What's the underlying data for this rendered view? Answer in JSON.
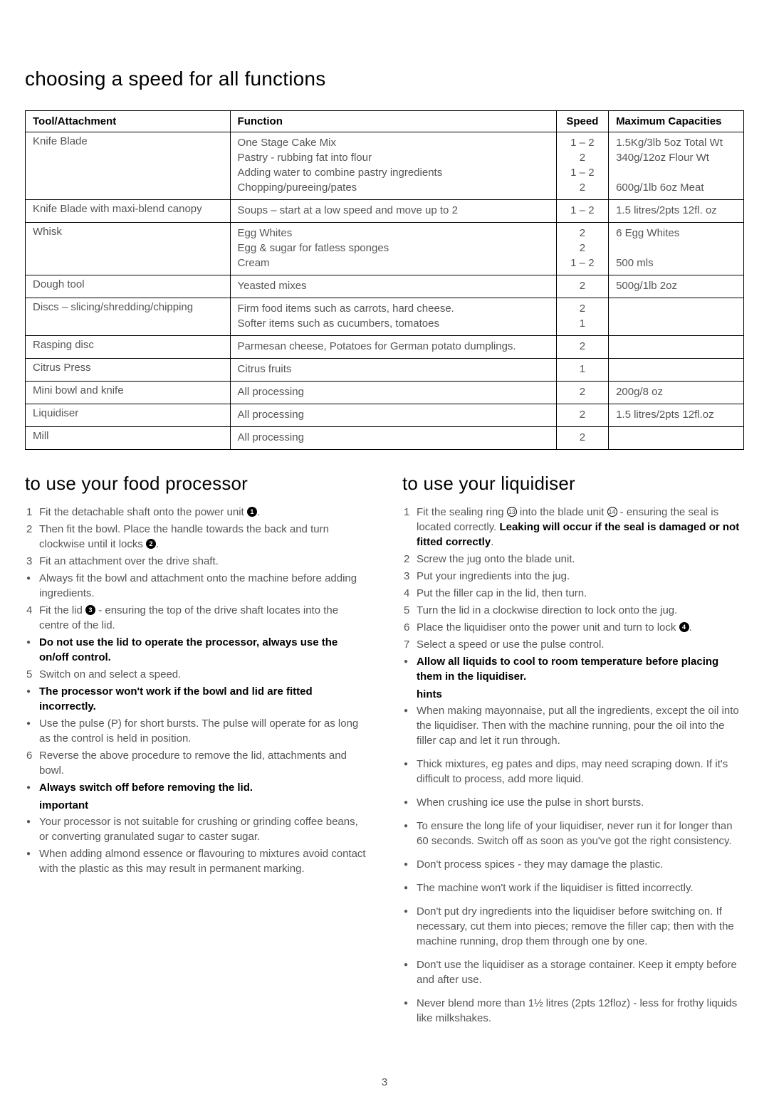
{
  "page_number": "3",
  "title_main": "choosing a speed for all functions",
  "table": {
    "headers": [
      "Tool/Attachment",
      "Function",
      "Speed",
      "Maximum Capacities"
    ],
    "rows": [
      {
        "tool": "Knife Blade",
        "function": [
          "One Stage Cake Mix",
          "Pastry - rubbing fat into flour",
          "Adding water to combine pastry ingredients",
          "Chopping/pureeing/pates"
        ],
        "speed": [
          "1 – 2",
          "2",
          "1 – 2",
          "2"
        ],
        "cap": [
          "1.5Kg/3lb 5oz Total Wt",
          "340g/12oz Flour Wt",
          "",
          "600g/1lb 6oz Meat"
        ]
      },
      {
        "tool": "Knife Blade with maxi-blend canopy",
        "function": [
          "Soups – start at a low speed and move up to 2"
        ],
        "speed": [
          "1 – 2"
        ],
        "cap": [
          "1.5 litres/2pts 12fl. oz"
        ]
      },
      {
        "tool": "Whisk",
        "function": [
          "Egg Whites",
          "Egg & sugar for fatless sponges",
          "Cream"
        ],
        "speed": [
          "2",
          "2",
          "1 – 2"
        ],
        "cap": [
          "6 Egg Whites",
          "",
          "500 mls"
        ]
      },
      {
        "tool": "Dough tool",
        "function": [
          "Yeasted mixes"
        ],
        "speed": [
          "2"
        ],
        "cap": [
          "500g/1lb 2oz"
        ]
      },
      {
        "tool": "Discs – slicing/shredding/chipping",
        "function": [
          "Firm food items such as carrots, hard cheese.",
          "Softer items such as cucumbers, tomatoes"
        ],
        "speed": [
          "2",
          "1"
        ],
        "cap": [
          ""
        ]
      },
      {
        "tool": "Rasping disc",
        "function": [
          "Parmesan cheese, Potatoes for German potato dumplings."
        ],
        "speed": [
          "2"
        ],
        "cap": [
          ""
        ]
      },
      {
        "tool": "Citrus Press",
        "function": [
          "Citrus fruits"
        ],
        "speed": [
          "1"
        ],
        "cap": [
          ""
        ]
      },
      {
        "tool": "Mini bowl and knife",
        "function": [
          "All processing"
        ],
        "speed": [
          "2"
        ],
        "cap": [
          "200g/8 oz"
        ]
      },
      {
        "tool": "Liquidiser",
        "function": [
          "All processing"
        ],
        "speed": [
          "2"
        ],
        "cap": [
          "1.5 litres/2pts 12fl.oz"
        ]
      },
      {
        "tool": "Mill",
        "function": [
          "All processing"
        ],
        "speed": [
          "2"
        ],
        "cap": [
          ""
        ]
      }
    ]
  },
  "col_left": {
    "heading": "to use your food processor",
    "items": [
      {
        "type": "num",
        "html": "Fit the detachable shaft onto the power unit <span class='circ'>1</span>."
      },
      {
        "type": "num",
        "html": "Then fit the bowl. Place the handle towards the back and turn clockwise until it locks <span class='circ'>2</span>."
      },
      {
        "type": "num",
        "html": "Fit an attachment over the drive shaft."
      },
      {
        "type": "bul",
        "html": "Always fit the bowl and attachment onto the machine before adding ingredients."
      },
      {
        "type": "num",
        "html": "Fit the lid <span class='circ'>3</span> - ensuring the top of the drive shaft locates into the centre of the lid."
      },
      {
        "type": "bul",
        "html": "<span class='b'>Do not use the lid to operate the processor, always use the on/off control.</span>"
      },
      {
        "type": "num",
        "html": "Switch on and select a speed."
      },
      {
        "type": "bul",
        "html": "<span class='b'>The processor won't work if the bowl and lid are fitted incorrectly.</span>"
      },
      {
        "type": "bul",
        "html": "Use the pulse (P) for short bursts. The pulse will operate for as long as the control is held in position."
      },
      {
        "type": "num",
        "html": "Reverse the above procedure to remove the lid, attachments and bowl."
      },
      {
        "type": "bul",
        "html": "<span class='b'>Always switch off before removing the lid.</span>"
      }
    ],
    "important_label": "important",
    "important": [
      {
        "html": "Your processor is not suitable for crushing or grinding coffee beans, or converting granulated sugar to caster sugar."
      },
      {
        "html": "When adding almond essence or flavouring to mixtures avoid contact with the plastic as this may result in permanent marking."
      }
    ]
  },
  "col_right": {
    "heading": "to use your liquidiser",
    "items": [
      {
        "type": "num",
        "html": "Fit the sealing ring <span class='circ-open'>13</span> into the blade unit <span class='circ-open'>14</span> - ensuring the seal is located correctly. <span class='b'>Leaking will occur if the seal is damaged or not fitted correctly</span>."
      },
      {
        "type": "num",
        "html": "Screw the jug onto the blade unit."
      },
      {
        "type": "num",
        "html": "Put your ingredients into the jug."
      },
      {
        "type": "num",
        "html": "Put the filler cap in the lid, then turn."
      },
      {
        "type": "num",
        "html": "Turn the lid in a clockwise direction to lock onto the jug."
      },
      {
        "type": "num",
        "html": "Place the liquidiser onto the power unit and turn to lock <span class='circ'>4</span>."
      },
      {
        "type": "num",
        "html": "Select a speed or use the pulse control."
      },
      {
        "type": "bul",
        "html": "<span class='b'>Allow all liquids to cool to room temperature before placing them in the liquidiser.</span>"
      }
    ],
    "hints_label": "hints",
    "hints": [
      {
        "html": "When making mayonnaise, put all the ingredients, except the oil into the liquidiser. Then with the machine running, pour the oil into the filler cap and let it run through."
      },
      {
        "html": "Thick mixtures, eg pates and dips, may need scraping down. If it's difficult to process, add more liquid."
      },
      {
        "html": "When crushing ice use the pulse in short bursts."
      },
      {
        "html": "To ensure the long life of your liquidiser, never run it for longer than 60 seconds. Switch off as soon as you've got the right consistency."
      },
      {
        "html": "Don't process spices - they may damage the plastic."
      },
      {
        "html": "The machine won't work if the liquidiser is fitted incorrectly."
      },
      {
        "html": "Don't put dry ingredients into the liquidiser before switching on. If necessary, cut them into pieces; remove the filler cap; then with the machine running, drop them through one by one."
      },
      {
        "html": "Don't use the liquidiser as a storage container. Keep it empty before and after use."
      },
      {
        "html": "Never blend more than 1½ litres (2pts 12floz) - less for frothy liquids like milkshakes."
      }
    ]
  }
}
